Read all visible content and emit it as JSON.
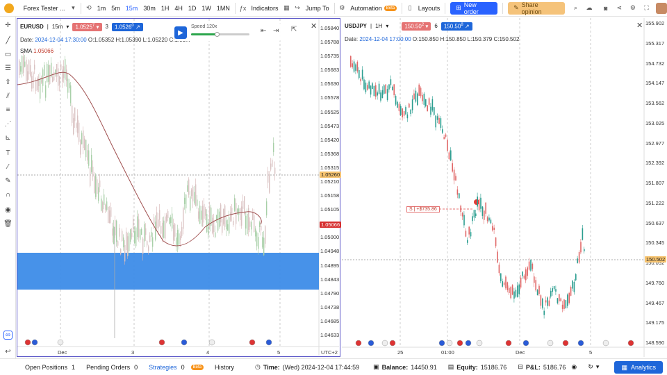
{
  "topbar": {
    "app_title": "Forex Tester ...",
    "timeframes": [
      "1m",
      "5m",
      "15m",
      "30m",
      "1H",
      "4H",
      "1D",
      "1W",
      "1MN"
    ],
    "active_timeframe": "15m",
    "indicators_label": "Indicators",
    "jump_to_label": "Jump To",
    "automation_label": "Automation",
    "beta_label": "Beta",
    "layouts_label": "Layouts",
    "new_order_label": "New order",
    "share_label": "Share opinion"
  },
  "left_chart": {
    "symbol": "EURUSD",
    "timeframe": "15m",
    "sell_price": "1.0525",
    "sell_sup": "7",
    "spread": "3",
    "buy_price": "1.0526",
    "buy_sup": "0",
    "speed_label": "Speed 120x",
    "ohlc": {
      "date_label": "Date:",
      "date": "2024-12-04 17:30:00",
      "o_label": "O:",
      "o": "1.05352",
      "h_label": "H:",
      "h": "1.05390",
      "l_label": "L:",
      "l": "1.05220",
      "c_label": "C:",
      "c": "1.05..."
    },
    "sma_label": "SMA",
    "sma_value": "1.05066",
    "price_axis": [
      "1.05840",
      "1.05788",
      "1.05735",
      "1.05683",
      "1.05630",
      "1.05578",
      "1.05525",
      "1.05473",
      "1.05420",
      "1.05368",
      "1.05315",
      "1.05210",
      "1.05158",
      "1.05105",
      "1.05053",
      "1.05000",
      "1.04948",
      "1.04895",
      "1.04843",
      "1.04790",
      "1.04738",
      "1.04685",
      "1.04633"
    ],
    "current_price_tag": "1.05260",
    "sma_tag": "1.05066",
    "time_axis": [
      "Dec",
      "3",
      "4",
      "5"
    ],
    "timezone": "UTC+2"
  },
  "right_chart": {
    "symbol": "USDJPY",
    "timeframe": "1H",
    "sell_price": "150.50",
    "sell_sup": "2",
    "spread": "6",
    "buy_price": "150.50",
    "buy_sup": "8",
    "ohlc": {
      "date_label": "Date:",
      "date": "2024-12-04 17:00:00",
      "o_label": "O:",
      "o": "150.850",
      "h_label": "H:",
      "h": "150.850",
      "l_label": "L:",
      "l": "150.379",
      "c_label": "C:",
      "c": "150.502"
    },
    "price_axis": [
      "155.902",
      "155.317",
      "154.732",
      "154.147",
      "153.562",
      "153.025",
      "152.977",
      "152.392",
      "151.807",
      "151.222",
      "150.637",
      "150.345",
      "150.052",
      "149.760",
      "149.467",
      "149.175",
      "148.590"
    ],
    "current_price_tag": "150.502",
    "position_label": "S",
    "position_pnl": "+$735.86",
    "time_axis": [
      "25",
      "01:00",
      "Dec",
      "5"
    ]
  },
  "bottombar": {
    "open_positions_label": "Open Positions",
    "open_positions_count": "1",
    "pending_orders_label": "Pending Orders",
    "pending_orders_count": "0",
    "strategies_label": "Strategies",
    "strategies_count": "0",
    "beta_label": "Beta",
    "history_label": "History",
    "time_label": "Time:",
    "time_value": "(Wed) 2024-12-04 17:44:59",
    "balance_label": "Balance:",
    "balance_value": "14450.91",
    "equity_label": "Equity:",
    "equity_value": "15186.76",
    "pnl_label": "P&L:",
    "pnl_value": "5186.76",
    "analytics_label": "Analytics"
  },
  "colors": {
    "accent": "#2962ff",
    "sell": "#e57373",
    "buy": "#1e66d9",
    "sma": "#a05050",
    "zone": "#3d8ce8",
    "frame": "#5b56c8"
  }
}
